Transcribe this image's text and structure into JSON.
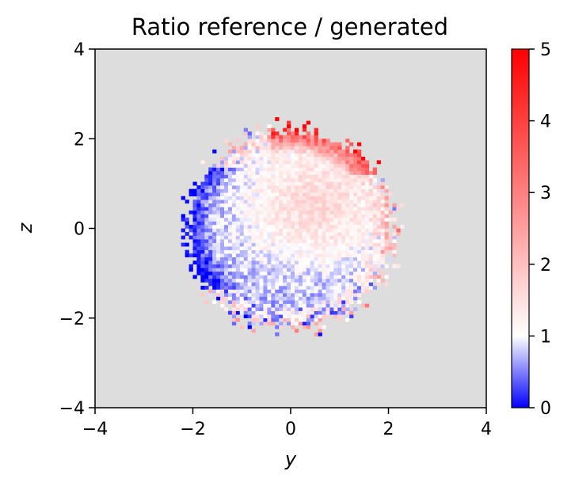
{
  "chart_data": {
    "type": "heatmap",
    "title": "Ratio reference / generated",
    "xlabel": "y",
    "ylabel": "z",
    "xlim": [
      -4,
      4
    ],
    "ylim": [
      -4,
      4
    ],
    "x_ticks": [
      -4,
      -2,
      0,
      2,
      4
    ],
    "y_ticks": [
      -4,
      -2,
      0,
      2,
      4
    ],
    "x_tick_labels": [
      "−4",
      "−2",
      "0",
      "2",
      "4"
    ],
    "y_tick_labels": [
      "−4",
      "−2",
      "0",
      "2",
      "4"
    ],
    "grid": false,
    "bins": [
      100,
      100
    ],
    "empty_bin_color": "#dddddd",
    "data_region": {
      "shape": "approximately circular blob",
      "center": [
        0.0,
        0.0
      ],
      "radius_y": 2.2,
      "radius_z": 2.3
    },
    "ratio_pattern": {
      "center_value": 1.0,
      "upper_right_core_value": 1.6,
      "edge_high_region": "top edge around y=0.5..1.5, z=1.5..2.2 (values 4-5)",
      "edge_low_region": "left edge around y=-2..-1, z=-1..1 (values 0-0.5)",
      "lower_inner_value": 0.7
    },
    "colorbar": {
      "colormap": "bwr",
      "vmin": 0,
      "vmax": 5,
      "center": 1,
      "ticks": [
        0,
        1,
        2,
        3,
        4,
        5
      ],
      "tick_labels": [
        "0",
        "1",
        "2",
        "3",
        "4",
        "5"
      ],
      "colors": {
        "low": "#0000ff",
        "mid": "#ffffff",
        "high": "#ff0000"
      }
    }
  }
}
